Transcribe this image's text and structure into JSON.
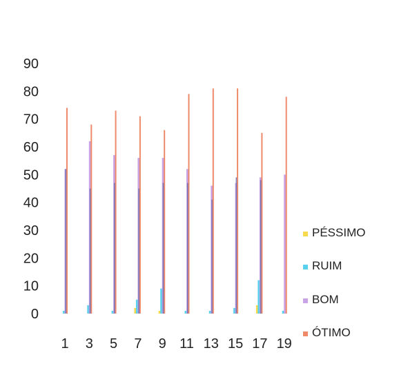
{
  "chart_data": {
    "type": "bar",
    "categories": [
      "1",
      "3",
      "5",
      "7",
      "9",
      "11",
      "13",
      "15",
      "17",
      "19"
    ],
    "series": [
      {
        "name": "PÉSSIMO",
        "color": "#f7d94c",
        "values": [
          0,
          0,
          0,
          2,
          1,
          0,
          0,
          0,
          3,
          0
        ]
      },
      {
        "name": "RUIM",
        "color": "#5ad1ec",
        "values": [
          1,
          3,
          1,
          5,
          9,
          1,
          1,
          2,
          12,
          1
        ]
      },
      {
        "name": "BOM",
        "color": "#c8a4e6",
        "values": [
          52,
          62,
          57,
          56,
          56,
          52,
          46,
          47,
          49,
          50
        ]
      },
      {
        "name": "ÓTIMO",
        "color": "#ee8a6a",
        "values": [
          74,
          68,
          73,
          71,
          66,
          79,
          81,
          81,
          65,
          78
        ]
      }
    ],
    "extra_series_dark": [
      52,
      45,
      47,
      45,
      47,
      47,
      41,
      49,
      48,
      0
    ],
    "yticks": [
      0,
      10,
      20,
      30,
      40,
      50,
      60,
      70,
      80,
      90
    ],
    "ylim": [
      0,
      90
    ],
    "grid": false,
    "legend_position": "right"
  }
}
